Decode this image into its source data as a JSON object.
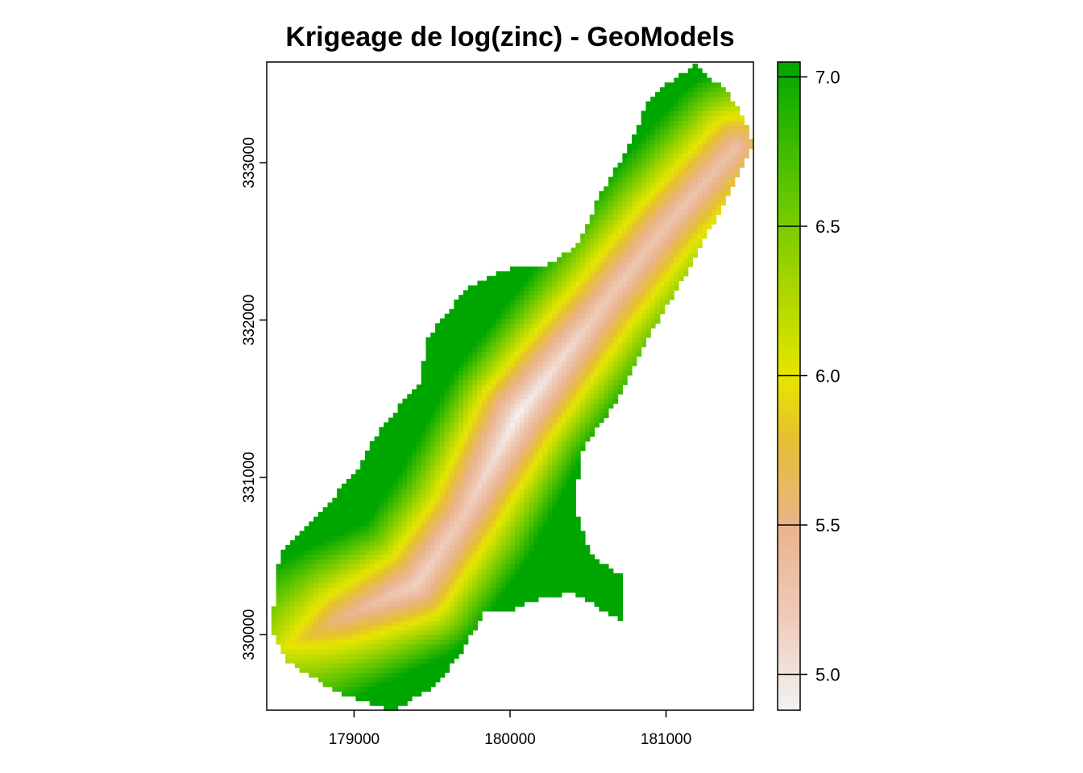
{
  "chart_data": {
    "type": "heatmap",
    "title": "Krigeage de log(zinc) - GeoModels",
    "xlabel": "",
    "ylabel": "",
    "xlim": [
      178440,
      181560
    ],
    "ylim": [
      329520,
      333640
    ],
    "x_ticks": [
      179000,
      180000,
      181000
    ],
    "x_tick_labels": [
      "179000",
      "180000",
      "181000"
    ],
    "y_ticks": [
      330000,
      331000,
      332000,
      333000
    ],
    "y_tick_labels": [
      "330000",
      "331000",
      "332000",
      "333000"
    ],
    "value_range": [
      4.88,
      7.05
    ],
    "legend": {
      "placement": "right",
      "ticks": [
        5.0,
        5.5,
        6.0,
        6.5,
        7.0
      ],
      "tick_labels": [
        "5.0",
        "5.5",
        "6.0",
        "6.5",
        "7.0"
      ]
    },
    "colormap": [
      {
        "value": 4.88,
        "color": "#F2F2F2"
      },
      {
        "value": 5.2,
        "color": "#EECAB8"
      },
      {
        "value": 5.5,
        "color": "#EAB38A"
      },
      {
        "value": 5.8,
        "color": "#E6C030"
      },
      {
        "value": 6.0,
        "color": "#E6E600"
      },
      {
        "value": 6.3,
        "color": "#A8D600"
      },
      {
        "value": 6.6,
        "color": "#63C600"
      },
      {
        "value": 7.05,
        "color": "#00A600"
      }
    ],
    "ridge": [
      {
        "x": 178480,
        "y": 329880,
        "v": 6.15
      },
      {
        "x": 178900,
        "y": 330100,
        "v": 5.5
      },
      {
        "x": 179400,
        "y": 330320,
        "v": 5.12
      },
      {
        "x": 179700,
        "y": 330750,
        "v": 5.2
      },
      {
        "x": 180050,
        "y": 331400,
        "v": 4.88
      },
      {
        "x": 180600,
        "y": 332100,
        "v": 5.2
      },
      {
        "x": 181000,
        "y": 332600,
        "v": 5.25
      },
      {
        "x": 181450,
        "y": 333100,
        "v": 5.3
      }
    ],
    "domain_outline": [
      [
        179240,
        329520
      ],
      [
        178920,
        329620
      ],
      [
        178580,
        329820
      ],
      [
        178470,
        330040
      ],
      [
        178520,
        330500
      ],
      [
        178800,
        330800
      ],
      [
        179000,
        331020
      ],
      [
        179160,
        331300
      ],
      [
        179420,
        331600
      ],
      [
        179480,
        331900
      ],
      [
        179720,
        332200
      ],
      [
        180000,
        332330
      ],
      [
        180280,
        332360
      ],
      [
        180440,
        332500
      ],
      [
        180580,
        332800
      ],
      [
        180760,
        333100
      ],
      [
        180900,
        333420
      ],
      [
        181180,
        333620
      ],
      [
        181360,
        333480
      ],
      [
        181470,
        333340
      ],
      [
        181560,
        333120
      ],
      [
        181400,
        332800
      ],
      [
        181130,
        332300
      ],
      [
        180920,
        331950
      ],
      [
        180720,
        331550
      ],
      [
        180450,
        331150
      ],
      [
        180420,
        330800
      ],
      [
        180520,
        330500
      ],
      [
        180730,
        330370
      ],
      [
        180710,
        330090
      ],
      [
        180400,
        330270
      ],
      [
        180150,
        330220
      ],
      [
        180000,
        330150
      ],
      [
        179830,
        330150
      ],
      [
        179780,
        330050
      ],
      [
        179690,
        329900
      ],
      [
        179550,
        329700
      ],
      [
        179360,
        329580
      ]
    ],
    "cell_size": 30
  }
}
